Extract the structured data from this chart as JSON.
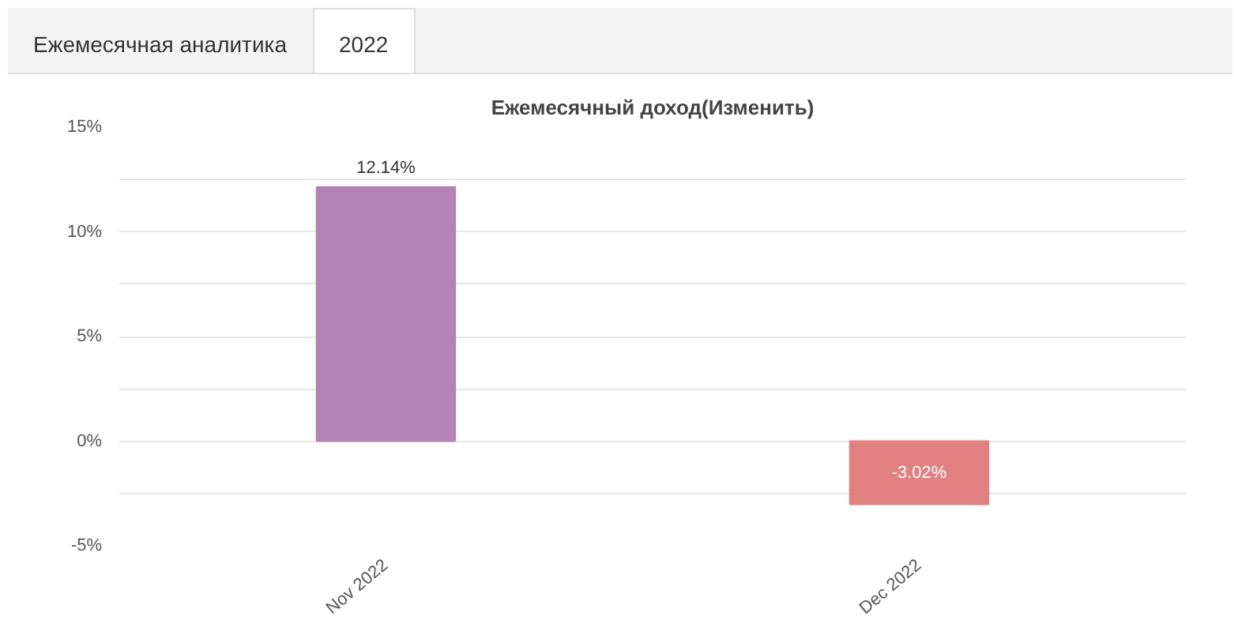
{
  "chart_data": {
    "type": "bar",
    "title": "Ежемесячный доход(Изменить)",
    "annotations": [
      "Ежемесячная аналитика",
      "2022"
    ],
    "categories": [
      "Nov 2022",
      "Dec 2022"
    ],
    "values": [
      12.14,
      -3.02
    ],
    "colors": [
      "#b384b3",
      "#e08080"
    ],
    "value_labels": [
      "12.14%",
      "-3.02%"
    ],
    "ylim": [
      -5,
      15
    ],
    "yticks": [
      {
        "value": -5,
        "label": "-5%"
      },
      {
        "value": -2.5,
        "label": null
      },
      {
        "value": 0,
        "label": "0%"
      },
      {
        "value": 2.5,
        "label": null
      },
      {
        "value": 5,
        "label": "5%"
      },
      {
        "value": 7.5,
        "label": null
      },
      {
        "value": 10,
        "label": "10%"
      },
      {
        "value": 12.5,
        "label": null
      },
      {
        "value": 15,
        "label": "15%"
      }
    ],
    "grid": "y"
  }
}
